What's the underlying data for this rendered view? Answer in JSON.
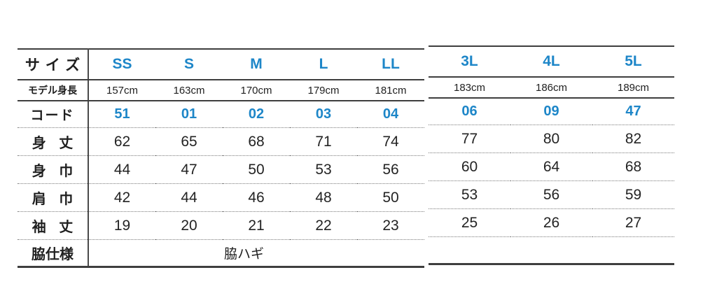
{
  "colors": {
    "accent": "#1d86c8",
    "text": "#1f1f1f",
    "rule_line": "#3e3e3e"
  },
  "row_labels": {
    "size": "サイズ",
    "model_height": "モデル身長",
    "code": "コード",
    "body_length": "身 丈",
    "body_width": "身 巾",
    "shoulder_width": "肩 巾",
    "sleeve_length": "袖 丈",
    "side_spec": "脇仕様"
  },
  "columns": [
    {
      "size": "SS",
      "model_height": "157cm",
      "code": "51",
      "body_length": "62",
      "body_width": "44",
      "shoulder_width": "42",
      "sleeve_length": "19"
    },
    {
      "size": "S",
      "model_height": "163cm",
      "code": "01",
      "body_length": "65",
      "body_width": "47",
      "shoulder_width": "44",
      "sleeve_length": "20"
    },
    {
      "size": "M",
      "model_height": "170cm",
      "code": "02",
      "body_length": "68",
      "body_width": "50",
      "shoulder_width": "46",
      "sleeve_length": "21"
    },
    {
      "size": "L",
      "model_height": "179cm",
      "code": "03",
      "body_length": "71",
      "body_width": "53",
      "shoulder_width": "48",
      "sleeve_length": "22"
    },
    {
      "size": "LL",
      "model_height": "181cm",
      "code": "04",
      "body_length": "74",
      "body_width": "56",
      "shoulder_width": "50",
      "sleeve_length": "23"
    },
    {
      "size": "3L",
      "model_height": "183cm",
      "code": "06",
      "body_length": "77",
      "body_width": "60",
      "shoulder_width": "53",
      "sleeve_length": "25"
    },
    {
      "size": "4L",
      "model_height": "186cm",
      "code": "09",
      "body_length": "80",
      "body_width": "64",
      "shoulder_width": "56",
      "sleeve_length": "26"
    },
    {
      "size": "5L",
      "model_height": "189cm",
      "code": "47",
      "body_length": "82",
      "body_width": "68",
      "shoulder_width": "59",
      "sleeve_length": "27"
    }
  ],
  "side_spec_value": "脇ハギ"
}
